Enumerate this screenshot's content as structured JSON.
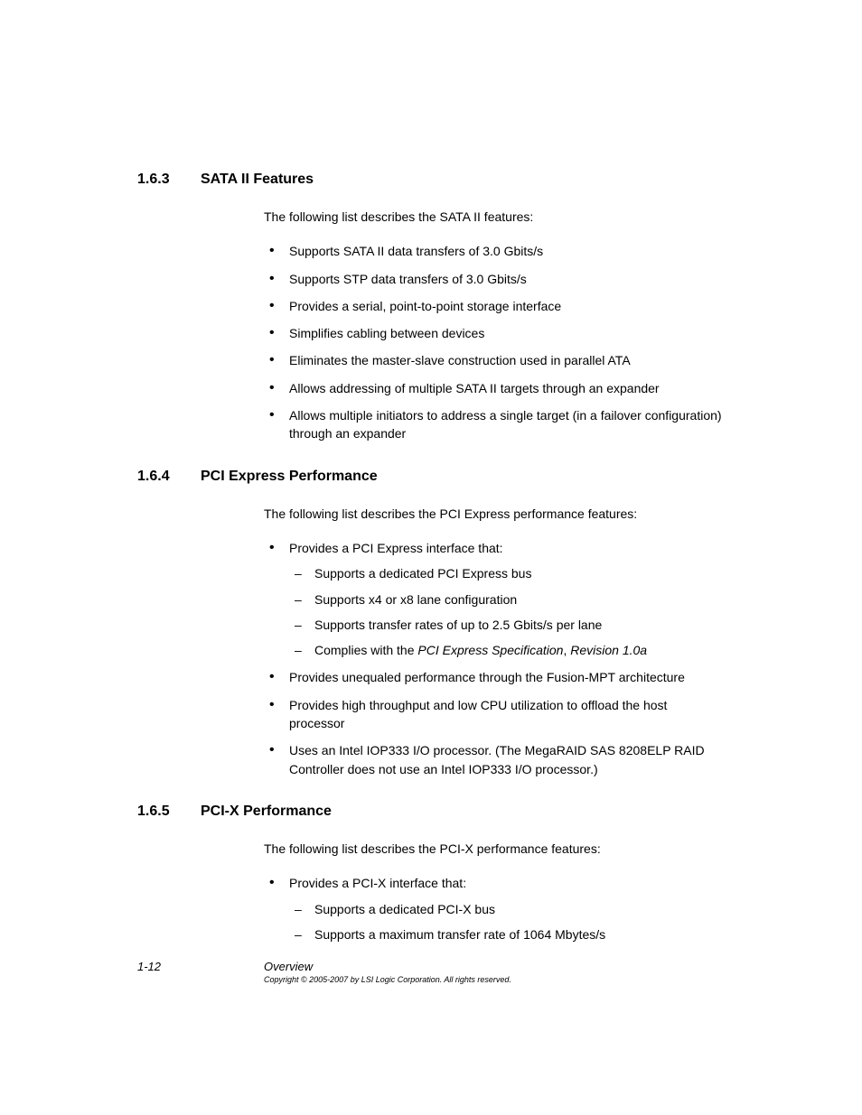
{
  "colors": {
    "background": "#ffffff",
    "text": "#000000"
  },
  "typography": {
    "body_family": "Arial, Helvetica, sans-serif",
    "heading_size_pt": 16,
    "body_size_pt": 14,
    "footer_size_pt": 13,
    "copyright_size_pt": 9
  },
  "sections": [
    {
      "num": "1.6.3",
      "title": "SATA II Features",
      "intro": "The following list describes the SATA II features:",
      "items": [
        {
          "text": "Supports SATA II data transfers of 3.0 Gbits/s"
        },
        {
          "text": "Supports STP data transfers of 3.0 Gbits/s"
        },
        {
          "text": "Provides a serial, point-to-point storage interface"
        },
        {
          "text": "Simplifies cabling between devices"
        },
        {
          "text": "Eliminates the master-slave construction used in parallel ATA"
        },
        {
          "text": "Allows addressing of multiple SATA II targets through an expander"
        },
        {
          "text": "Allows multiple initiators to address a single target (in a failover configuration) through an expander"
        }
      ]
    },
    {
      "num": "1.6.4",
      "title": "PCI Express Performance",
      "intro": "The following list describes the PCI Express performance features:",
      "items": [
        {
          "text": "Provides a PCI Express interface that:",
          "sub": [
            {
              "text": "Supports a dedicated PCI Express bus"
            },
            {
              "text": "Supports x4 or x8 lane configuration"
            },
            {
              "text": "Supports transfer rates of up to 2.5 Gbits/s per lane"
            },
            {
              "pre": "Complies with the ",
              "italic": "PCI Express Specification",
              "mid": ", ",
              "italic2": "Revision 1.0a"
            }
          ]
        },
        {
          "text": "Provides unequaled performance through the Fusion-MPT architecture"
        },
        {
          "text": "Provides high throughput and low CPU utilization to offload the host processor"
        },
        {
          "text": "Uses an Intel IOP333 I/O processor. (The MegaRAID SAS 8208ELP RAID Controller does not use an Intel IOP333 I/O processor.)"
        }
      ]
    },
    {
      "num": "1.6.5",
      "title": "PCI-X Performance",
      "intro": "The following list describes the PCI-X performance features:",
      "items": [
        {
          "text": "Provides a PCI-X interface that:",
          "sub": [
            {
              "text": "Supports a dedicated PCI-X bus"
            },
            {
              "text": "Supports a maximum transfer rate of 1064 Mbytes/s"
            }
          ]
        }
      ]
    }
  ],
  "footer": {
    "page": "1-12",
    "title": "Overview",
    "copyright": "Copyright © 2005-2007 by LSI Logic Corporation. All rights reserved."
  }
}
